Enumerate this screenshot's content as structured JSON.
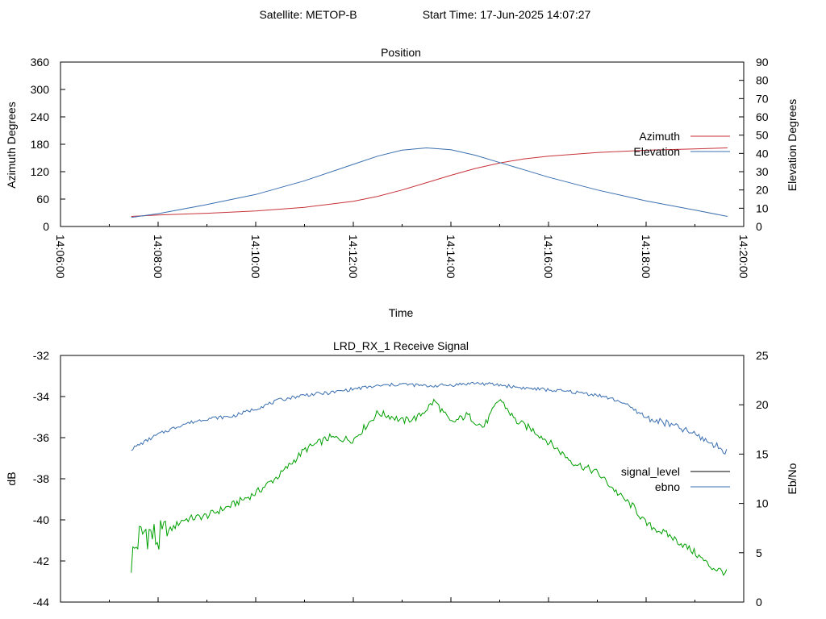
{
  "header": {
    "satellite": "Satellite: METOP-B",
    "start_time": "Start Time: 17-Jun-2025 14:07:27"
  },
  "chart_data": [
    {
      "type": "line",
      "title": "Position",
      "xlabel": "Time",
      "ylabel": "Azimuth Degrees",
      "y2label": "Elevation Degrees",
      "xlim": [
        "14:06:00",
        "14:20:00"
      ],
      "ylim": [
        0,
        360
      ],
      "y2lim": [
        0,
        90
      ],
      "x_ticks": [
        "14:06:00",
        "14:08:00",
        "14:10:00",
        "14:12:00",
        "14:14:00",
        "14:16:00",
        "14:18:00",
        "14:20:00"
      ],
      "y_ticks": [
        "0",
        "60",
        "120",
        "180",
        "240",
        "300",
        "360"
      ],
      "y2_ticks": [
        "0",
        "10",
        "20",
        "30",
        "40",
        "50",
        "60",
        "70",
        "80",
        "90"
      ],
      "legend_position": "right",
      "grid": false,
      "series": [
        {
          "name": "Azimuth",
          "axis": "y",
          "color": "#c8323a",
          "x": [
            "14:07:27",
            "14:08:00",
            "14:09:00",
            "14:10:00",
            "14:11:00",
            "14:12:00",
            "14:12:30",
            "14:13:00",
            "14:13:30",
            "14:14:00",
            "14:14:30",
            "14:15:00",
            "14:15:30",
            "14:16:00",
            "14:17:00",
            "14:18:00",
            "14:19:00",
            "14:19:40"
          ],
          "values": [
            22,
            25,
            29,
            34,
            42,
            55,
            66,
            80,
            96,
            112,
            127,
            139,
            148,
            154,
            162,
            167,
            170,
            172
          ]
        },
        {
          "name": "Elevation",
          "axis": "y2",
          "color": "#3a6fb0",
          "x": [
            "14:07:27",
            "14:08:00",
            "14:09:00",
            "14:10:00",
            "14:11:00",
            "14:12:00",
            "14:12:30",
            "14:13:00",
            "14:13:30",
            "14:14:00",
            "14:14:30",
            "14:15:00",
            "14:15:30",
            "14:16:00",
            "14:17:00",
            "14:18:00",
            "14:19:00",
            "14:19:40"
          ],
          "values": [
            5,
            7,
            12,
            17.5,
            25,
            34,
            38.5,
            41.8,
            43,
            42,
            39,
            35,
            31,
            27,
            20,
            14,
            9,
            5.5
          ]
        }
      ]
    },
    {
      "type": "line",
      "title": "LRD_RX_1 Receive Signal",
      "ylabel": "dB",
      "y2label": "Eb/No",
      "xlim": [
        "14:06:00",
        "14:20:00"
      ],
      "ylim": [
        -44,
        -32
      ],
      "y2lim": [
        0,
        25
      ],
      "y_ticks": [
        "-44",
        "-42",
        "-40",
        "-38",
        "-36",
        "-34",
        "-32"
      ],
      "y2_ticks": [
        "0",
        "5",
        "10",
        "15",
        "20",
        "25"
      ],
      "legend_position": "right",
      "grid": false,
      "series": [
        {
          "name": "signal_level",
          "axis": "y",
          "color": "#00a000",
          "x": [
            "14:07:27",
            "14:07:35",
            "14:07:45",
            "14:08:00",
            "14:08:30",
            "14:09:00",
            "14:09:30",
            "14:10:00",
            "14:10:30",
            "14:11:00",
            "14:11:30",
            "14:12:00",
            "14:12:30",
            "14:12:50",
            "14:13:00",
            "14:13:20",
            "14:13:40",
            "14:14:00",
            "14:14:20",
            "14:14:40",
            "14:15:00",
            "14:15:20",
            "14:15:40",
            "14:16:00",
            "14:16:30",
            "14:17:00",
            "14:17:30",
            "14:17:45",
            "14:18:00",
            "14:18:30",
            "14:19:00",
            "14:19:20",
            "14:19:40"
          ],
          "values": [
            -42.0,
            -41.0,
            -40.5,
            -41.0,
            -40.0,
            -39.8,
            -39.3,
            -38.7,
            -37.8,
            -36.6,
            -36.0,
            -36.1,
            -34.8,
            -35.0,
            -35.2,
            -35.0,
            -34.2,
            -35.3,
            -34.9,
            -35.5,
            -34.1,
            -35.2,
            -35.6,
            -36.2,
            -37.2,
            -37.7,
            -38.9,
            -39.4,
            -40.2,
            -40.8,
            -41.6,
            -42.3,
            -42.6
          ]
        },
        {
          "name": "ebno",
          "axis": "y2",
          "color": "#3a6fb0",
          "x": [
            "14:07:27",
            "14:08:00",
            "14:08:30",
            "14:09:00",
            "14:09:30",
            "14:10:00",
            "14:10:30",
            "14:11:00",
            "14:11:30",
            "14:12:00",
            "14:12:30",
            "14:13:00",
            "14:13:30",
            "14:14:00",
            "14:14:30",
            "14:15:00",
            "14:15:30",
            "14:16:00",
            "14:16:30",
            "14:17:00",
            "14:17:30",
            "14:18:00",
            "14:18:30",
            "14:19:00",
            "14:19:40"
          ],
          "values": [
            15.5,
            17.0,
            18.0,
            18.6,
            18.8,
            19.6,
            20.5,
            21.0,
            21.2,
            21.6,
            21.9,
            22.1,
            21.9,
            22.0,
            22.2,
            22.0,
            21.7,
            21.5,
            21.3,
            21.0,
            20.3,
            18.7,
            18.0,
            17.0,
            15.2
          ]
        }
      ]
    }
  ]
}
